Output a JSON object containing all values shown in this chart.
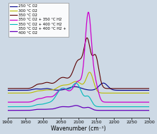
{
  "xlabel": "Wavenumber (cm⁻¹)",
  "xlim": [
    1900,
    2300
  ],
  "background_color": "#cdd9e5",
  "legend_labels": [
    "250 °C O2",
    "300 °C O2",
    "350 °C O2",
    "350 °C O2 + 350 °C H2",
    "350 °C O2 + 400 °C H2",
    "350 °C O2 + 400 °C H2 +\n400 °C O2"
  ],
  "line_colors": [
    "#00008B",
    "#BBBB00",
    "#5B0000",
    "#CC00CC",
    "#00BBBB",
    "#6600BB"
  ],
  "line_widths": [
    0.8,
    0.8,
    0.8,
    0.9,
    0.8,
    0.9
  ],
  "baselines": [
    0.08,
    0.05,
    0.1,
    -0.05,
    -0.1,
    -0.14
  ]
}
